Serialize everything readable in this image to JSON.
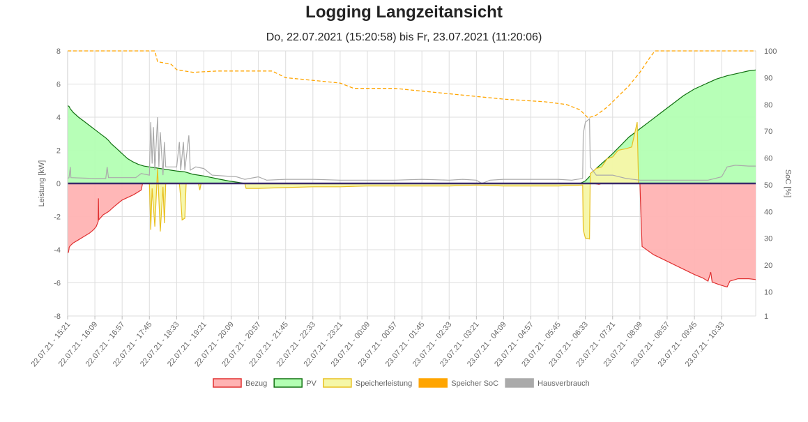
{
  "title": "Logging Langzeitansicht",
  "subtitle": "Do, 22.07.2021 (15:20:58) bis Fr, 23.07.2021 (11:20:06)",
  "chart_data": {
    "type": "area",
    "x_tick_labels": [
      "22.07.21 - 15:21",
      "22.07.21 - 16:09",
      "22.07.21 - 16:57",
      "22.07.21 - 17:45",
      "22.07.21 - 18:33",
      "22.07.21 - 19:21",
      "22.07.21 - 20:09",
      "22.07.21 - 20:57",
      "22.07.21 - 21:45",
      "22.07.21 - 22:33",
      "22.07.21 - 23:21",
      "23.07.21 - 00:09",
      "23.07.21 - 00:57",
      "23.07.21 - 01:45",
      "23.07.21 - 02:33",
      "23.07.21 - 03:21",
      "23.07.21 - 04:09",
      "23.07.21 - 04:57",
      "23.07.21 - 05:45",
      "23.07.21 - 06:33",
      "23.07.21 - 07:21",
      "23.07.21 - 08:09",
      "23.07.21 - 08:57",
      "23.07.21 - 09:45",
      "23.07.21 - 10:33"
    ],
    "x_range": [
      "22.07.21 - 15:21",
      "23.07.21 - 11:20"
    ],
    "y_left": {
      "label": "Leistung [kW]",
      "ticks": [
        "8",
        "6",
        "4",
        "2",
        "0",
        "-2",
        "-4",
        "-6",
        "-8"
      ],
      "min": -8,
      "max": 8
    },
    "y_right": {
      "label": "SoC [%]",
      "ticks": [
        "100",
        "90",
        "80",
        "70",
        "60",
        "50",
        "40",
        "30",
        "20",
        "10",
        "1"
      ],
      "min": 1,
      "max": 100
    },
    "grid": true,
    "legend_position": "bottom",
    "series": [
      {
        "name": "Bezug",
        "axis": "left",
        "fill": "#ffb3b3",
        "stroke": "#e03030",
        "points": [
          [
            0,
            -4.2
          ],
          [
            0.03,
            -4.15
          ],
          [
            0.04,
            -4.05
          ],
          [
            0.05,
            -3.95
          ],
          [
            0.06,
            -3.85
          ],
          [
            0.1,
            -3.75
          ],
          [
            0.2,
            -3.6
          ],
          [
            0.4,
            -3.4
          ],
          [
            0.6,
            -3.2
          ],
          [
            0.8,
            -3.0
          ],
          [
            0.95,
            -2.8
          ],
          [
            1.05,
            -2.6
          ],
          [
            1.12,
            -2.3
          ],
          [
            1.13,
            -0.9
          ],
          [
            1.14,
            -2.2
          ],
          [
            1.3,
            -1.9
          ],
          [
            1.5,
            -1.7
          ],
          [
            1.7,
            -1.4
          ],
          [
            1.85,
            -1.2
          ],
          [
            2.0,
            -1.0
          ],
          [
            2.2,
            -0.85
          ],
          [
            2.4,
            -0.7
          ],
          [
            2.5,
            -0.6
          ],
          [
            2.6,
            -0.5
          ],
          [
            2.7,
            -0.4
          ],
          [
            2.75,
            0
          ],
          [
            19.3,
            0
          ],
          [
            19.5,
            -0.05
          ],
          [
            19.6,
            0
          ],
          [
            21.0,
            0
          ],
          [
            21.05,
            -2.4
          ],
          [
            21.08,
            -3.8
          ],
          [
            21.5,
            -4.3
          ],
          [
            22.0,
            -4.7
          ],
          [
            22.5,
            -5.1
          ],
          [
            23.0,
            -5.5
          ],
          [
            23.3,
            -5.7
          ],
          [
            23.5,
            -5.9
          ],
          [
            23.6,
            -5.35
          ],
          [
            23.65,
            -5.95
          ],
          [
            23.9,
            -6.1
          ],
          [
            24.1,
            -6.2
          ],
          [
            24.2,
            -6.25
          ],
          [
            24.3,
            -5.9
          ],
          [
            24.6,
            -5.75
          ],
          [
            25.0,
            -5.75
          ],
          [
            25.25,
            -5.8
          ]
        ]
      },
      {
        "name": "PV",
        "axis": "left",
        "fill": "#b3ffb3",
        "stroke": "#107010",
        "points": [
          [
            0,
            4.7
          ],
          [
            0.05,
            4.65
          ],
          [
            0.1,
            4.5
          ],
          [
            0.2,
            4.3
          ],
          [
            0.4,
            4.0
          ],
          [
            0.6,
            3.75
          ],
          [
            0.8,
            3.5
          ],
          [
            1.0,
            3.25
          ],
          [
            1.2,
            3.0
          ],
          [
            1.4,
            2.75
          ],
          [
            1.5,
            2.6
          ],
          [
            1.6,
            2.4
          ],
          [
            1.8,
            2.1
          ],
          [
            2.0,
            1.8
          ],
          [
            2.2,
            1.5
          ],
          [
            2.4,
            1.3
          ],
          [
            2.6,
            1.15
          ],
          [
            2.8,
            1.05
          ],
          [
            3.0,
            1.0
          ],
          [
            3.2,
            0.95
          ],
          [
            3.4,
            0.9
          ],
          [
            3.6,
            0.85
          ],
          [
            3.8,
            0.8
          ],
          [
            4.0,
            0.75
          ],
          [
            4.3,
            0.7
          ],
          [
            4.6,
            0.55
          ],
          [
            5.0,
            0.45
          ],
          [
            5.3,
            0.35
          ],
          [
            5.6,
            0.25
          ],
          [
            5.9,
            0.15
          ],
          [
            6.2,
            0.08
          ],
          [
            6.5,
            0
          ],
          [
            18.8,
            0
          ],
          [
            19.0,
            0.15
          ],
          [
            19.2,
            0.5
          ],
          [
            19.4,
            0.9
          ],
          [
            19.6,
            1.2
          ],
          [
            19.8,
            1.5
          ],
          [
            20.0,
            1.8
          ],
          [
            20.3,
            2.3
          ],
          [
            20.6,
            2.8
          ],
          [
            21.0,
            3.3
          ],
          [
            21.4,
            3.8
          ],
          [
            21.8,
            4.3
          ],
          [
            22.2,
            4.8
          ],
          [
            22.6,
            5.3
          ],
          [
            23.0,
            5.7
          ],
          [
            23.4,
            6.0
          ],
          [
            23.8,
            6.3
          ],
          [
            24.2,
            6.5
          ],
          [
            24.6,
            6.65
          ],
          [
            25.0,
            6.8
          ],
          [
            25.25,
            6.85
          ]
        ]
      },
      {
        "name": "Speicherleistung",
        "axis": "left",
        "fill": "#f5f7a8",
        "stroke": "#e8c020",
        "points": [
          [
            0,
            0
          ],
          [
            3.0,
            0
          ],
          [
            3.05,
            -2.8
          ],
          [
            3.1,
            -0.3
          ],
          [
            3.2,
            -2.6
          ],
          [
            3.3,
            0.9
          ],
          [
            3.4,
            -2.9
          ],
          [
            3.5,
            -0.2
          ],
          [
            3.55,
            -2.4
          ],
          [
            3.6,
            0
          ],
          [
            4.1,
            0
          ],
          [
            4.15,
            -0.9
          ],
          [
            4.2,
            -2.2
          ],
          [
            4.3,
            -2.1
          ],
          [
            4.35,
            0
          ],
          [
            4.8,
            0
          ],
          [
            4.85,
            -0.4
          ],
          [
            4.9,
            0
          ],
          [
            6.5,
            0
          ],
          [
            6.55,
            -0.3
          ],
          [
            7.0,
            -0.3
          ],
          [
            8.0,
            -0.25
          ],
          [
            9.0,
            -0.2
          ],
          [
            10.0,
            -0.2
          ],
          [
            11.0,
            -0.15
          ],
          [
            12.0,
            -0.15
          ],
          [
            13.0,
            -0.15
          ],
          [
            14.0,
            -0.15
          ],
          [
            15.0,
            -0.1
          ],
          [
            16.0,
            -0.15
          ],
          [
            17.0,
            -0.15
          ],
          [
            18.0,
            -0.15
          ],
          [
            18.9,
            -0.1
          ],
          [
            18.92,
            -2.8
          ],
          [
            19.0,
            -3.3
          ],
          [
            19.15,
            -3.35
          ],
          [
            19.18,
            0.6
          ],
          [
            19.4,
            0.9
          ],
          [
            19.6,
            1.0
          ],
          [
            19.8,
            1.5
          ],
          [
            20.0,
            1.6
          ],
          [
            20.2,
            2.0
          ],
          [
            20.5,
            2.1
          ],
          [
            20.7,
            2.2
          ],
          [
            20.9,
            3.7
          ],
          [
            20.95,
            0
          ]
        ]
      },
      {
        "name": "Speicher SoC",
        "axis": "right",
        "stroke": "#ffa500",
        "dashed": true,
        "points": [
          [
            0,
            100
          ],
          [
            3.2,
            100
          ],
          [
            3.3,
            96
          ],
          [
            3.8,
            95
          ],
          [
            4.0,
            93
          ],
          [
            4.6,
            92
          ],
          [
            5.5,
            92.5
          ],
          [
            6.5,
            92.5
          ],
          [
            7.5,
            92.5
          ],
          [
            8.0,
            90
          ],
          [
            9.0,
            89
          ],
          [
            9.5,
            88.5
          ],
          [
            10.0,
            88
          ],
          [
            10.5,
            86
          ],
          [
            12.0,
            86
          ],
          [
            13.0,
            85
          ],
          [
            14.0,
            84
          ],
          [
            15.0,
            83
          ],
          [
            16.0,
            82
          ],
          [
            17.5,
            81
          ],
          [
            18.3,
            80
          ],
          [
            18.8,
            78
          ],
          [
            19.1,
            75
          ],
          [
            19.4,
            76
          ],
          [
            19.8,
            79
          ],
          [
            20.2,
            83
          ],
          [
            20.6,
            87
          ],
          [
            21.0,
            92
          ],
          [
            21.4,
            98
          ],
          [
            21.55,
            100
          ],
          [
            25.25,
            100
          ]
        ]
      },
      {
        "name": "Hausverbrauch",
        "axis": "left",
        "stroke": "#aaaaaa",
        "points": [
          [
            0,
            0.3
          ],
          [
            0.05,
            0.35
          ],
          [
            0.1,
            1.0
          ],
          [
            0.12,
            0.35
          ],
          [
            1.0,
            0.3
          ],
          [
            1.4,
            0.3
          ],
          [
            1.45,
            1.0
          ],
          [
            1.5,
            0.35
          ],
          [
            2.5,
            0.35
          ],
          [
            2.7,
            0.6
          ],
          [
            3.0,
            0.5
          ],
          [
            3.05,
            3.7
          ],
          [
            3.1,
            1.2
          ],
          [
            3.15,
            3.4
          ],
          [
            3.2,
            0.8
          ],
          [
            3.3,
            4.0
          ],
          [
            3.35,
            1.0
          ],
          [
            3.4,
            3.1
          ],
          [
            3.5,
            0.5
          ],
          [
            3.55,
            2.5
          ],
          [
            3.6,
            1.0
          ],
          [
            4.0,
            1.0
          ],
          [
            4.1,
            2.5
          ],
          [
            4.15,
            0.8
          ],
          [
            4.25,
            2.5
          ],
          [
            4.3,
            0.8
          ],
          [
            4.45,
            2.9
          ],
          [
            4.5,
            0.8
          ],
          [
            4.7,
            1.0
          ],
          [
            5.0,
            0.9
          ],
          [
            5.3,
            0.5
          ],
          [
            6.2,
            0.4
          ],
          [
            6.5,
            0.25
          ],
          [
            7.0,
            0.4
          ],
          [
            7.3,
            0.2
          ],
          [
            8.0,
            0.25
          ],
          [
            9.0,
            0.25
          ],
          [
            10.0,
            0.2
          ],
          [
            11.0,
            0.2
          ],
          [
            12.0,
            0.2
          ],
          [
            13.0,
            0.25
          ],
          [
            14.0,
            0.2
          ],
          [
            14.5,
            0.25
          ],
          [
            15.0,
            0.2
          ],
          [
            15.2,
            0.0
          ],
          [
            15.5,
            0.2
          ],
          [
            16.0,
            0.25
          ],
          [
            17.0,
            0.25
          ],
          [
            18.0,
            0.25
          ],
          [
            18.5,
            0.2
          ],
          [
            18.9,
            0.3
          ],
          [
            18.92,
            3.0
          ],
          [
            19.0,
            3.7
          ],
          [
            19.15,
            3.9
          ],
          [
            19.18,
            1.0
          ],
          [
            19.4,
            0.5
          ],
          [
            20.0,
            0.5
          ],
          [
            20.5,
            0.3
          ],
          [
            21.0,
            0.2
          ],
          [
            21.5,
            0.2
          ],
          [
            22.5,
            0.2
          ],
          [
            23.0,
            0.2
          ],
          [
            23.5,
            0.2
          ],
          [
            24.0,
            0.4
          ],
          [
            24.2,
            1.0
          ],
          [
            24.5,
            1.1
          ],
          [
            25.0,
            1.05
          ],
          [
            25.25,
            1.05
          ]
        ]
      }
    ],
    "x_unit_note": "x in tick-interval units from 22.07.21 - 15:21"
  },
  "legend": [
    {
      "label": "Bezug",
      "fill": "#ffb3b3",
      "stroke": "#e03030"
    },
    {
      "label": "PV",
      "fill": "#b3ffb3",
      "stroke": "#107010"
    },
    {
      "label": "Speicherleistung",
      "fill": "#f5f7a8",
      "stroke": "#e8c020"
    },
    {
      "label": "Speicher SoC",
      "fill": "#ffa500",
      "stroke": "#ffa500"
    },
    {
      "label": "Hausverbrauch",
      "fill": "#aaaaaa",
      "stroke": "#aaaaaa"
    }
  ]
}
